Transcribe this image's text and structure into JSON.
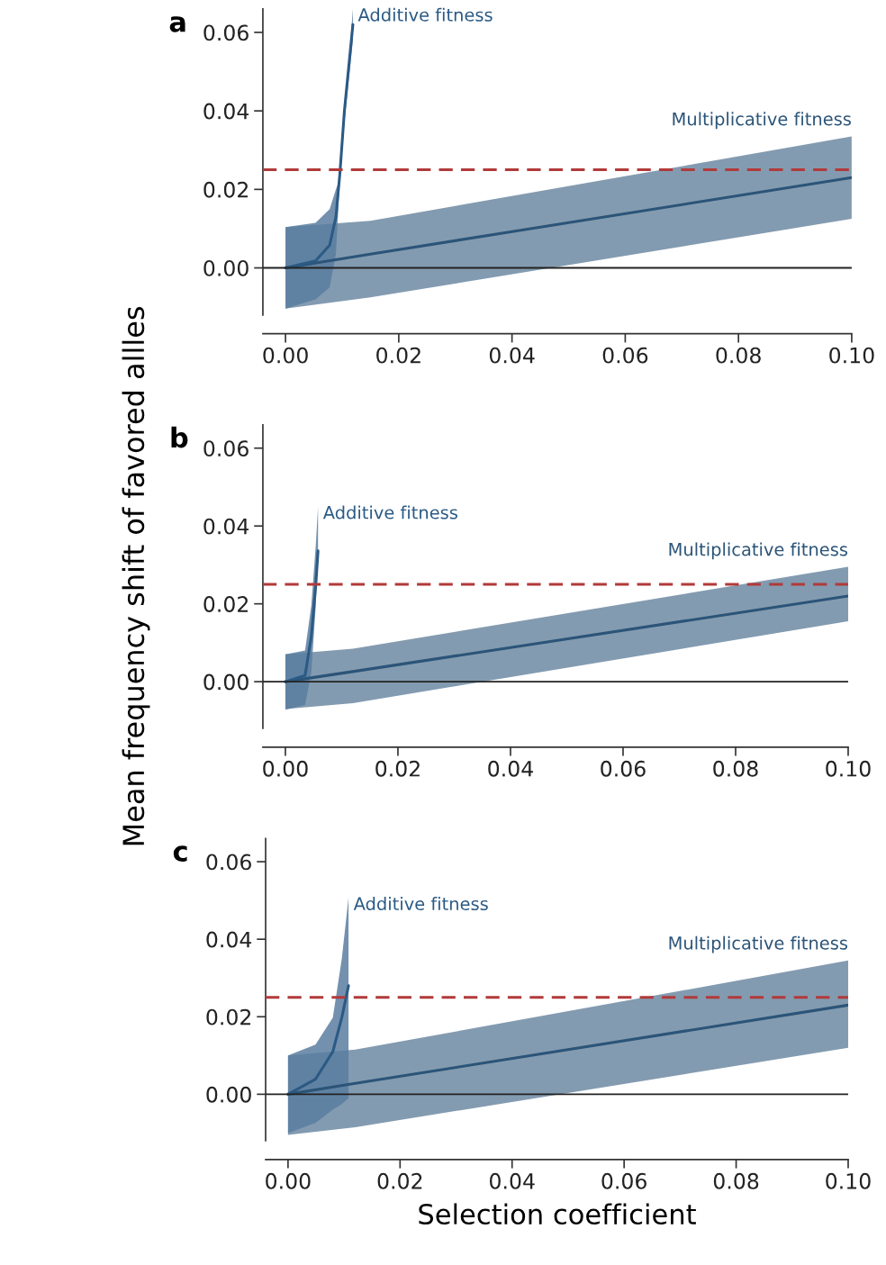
{
  "chart_data": [
    {
      "type": "line",
      "title": "a",
      "xlim": [
        -0.004,
        0.1
      ],
      "ylim": [
        -0.012,
        0.066
      ],
      "xticks": [
        {
          "value": 0,
          "label": "0.00"
        },
        {
          "value": 0.02,
          "label": "0.02"
        },
        {
          "value": 0.04,
          "label": "0.04"
        },
        {
          "value": 0.06,
          "label": "0.06"
        },
        {
          "value": 0.08,
          "label": "0.08"
        },
        {
          "value": 0.1,
          "label": "0.10"
        }
      ],
      "yticks": [
        {
          "value": 0,
          "label": "0.00"
        },
        {
          "value": 0.02,
          "label": "0.02"
        },
        {
          "value": 0.04,
          "label": "0.04"
        },
        {
          "value": 0.06,
          "label": "0.06"
        }
      ],
      "grid": false,
      "legend": false,
      "ref_lines": [
        {
          "axis": "y",
          "value": 0,
          "color": "#222222",
          "line_style": "solid"
        },
        {
          "axis": "y",
          "value": 0.025,
          "color": "#b23a3a",
          "line_style": "dashed"
        }
      ],
      "series": [
        {
          "name": "Multiplicative fitness",
          "color": "#2b5478",
          "x": [
            0,
            0.015,
            0.1
          ],
          "values": [
            0,
            0.0035,
            0.023
          ],
          "lower": [
            -0.0104,
            -0.0075,
            0.0125
          ],
          "upper": [
            0.0104,
            0.012,
            0.0335
          ]
        },
        {
          "name": "Additive fitness",
          "color": "#2b5a85",
          "x": [
            0,
            0.0053,
            0.0078,
            0.0089,
            0.0096,
            0.0104,
            0.0119
          ],
          "values": [
            0,
            0.0018,
            0.0058,
            0.013,
            0.024,
            0.04,
            0.062
          ],
          "lower": [
            -0.0104,
            -0.008,
            -0.005,
            0.0035,
            0.0226,
            0.037,
            0.058
          ],
          "upper": [
            0.0104,
            0.0115,
            0.015,
            0.02,
            0.0226,
            0.038,
            0.066
          ]
        }
      ]
    },
    {
      "type": "line",
      "title": "b",
      "ylabel": "Mean frequency shift of favored allles",
      "xlim": [
        -0.004,
        0.1
      ],
      "ylim": [
        -0.012,
        0.066
      ],
      "xticks": [
        {
          "value": 0,
          "label": "0.00"
        },
        {
          "value": 0.02,
          "label": "0.02"
        },
        {
          "value": 0.04,
          "label": "0.04"
        },
        {
          "value": 0.06,
          "label": "0.06"
        },
        {
          "value": 0.08,
          "label": "0.08"
        },
        {
          "value": 0.1,
          "label": "0.10"
        }
      ],
      "yticks": [
        {
          "value": 0,
          "label": "0.00"
        },
        {
          "value": 0.02,
          "label": "0.02"
        },
        {
          "value": 0.04,
          "label": "0.04"
        },
        {
          "value": 0.06,
          "label": "0.06"
        }
      ],
      "grid": false,
      "legend": false,
      "ref_lines": [
        {
          "axis": "y",
          "value": 0,
          "color": "#222222",
          "line_style": "solid"
        },
        {
          "axis": "y",
          "value": 0.025,
          "color": "#b23a3a",
          "line_style": "dashed"
        }
      ],
      "series": [
        {
          "name": "Multiplicative fitness",
          "color": "#2b5478",
          "x": [
            0,
            0.012,
            0.1
          ],
          "values": [
            0,
            0.0026,
            0.022
          ],
          "lower": [
            -0.007,
            -0.0055,
            0.0155
          ],
          "upper": [
            0.007,
            0.0085,
            0.0295
          ]
        },
        {
          "name": "Additive fitness",
          "color": "#2b5a85",
          "x": [
            0,
            0.0035,
            0.0046,
            0.0054,
            0.0058
          ],
          "values": [
            0,
            0.0016,
            0.0116,
            0.0248,
            0.0336
          ],
          "lower": [
            -0.0072,
            -0.006,
            0.0023,
            0.0195,
            0.034
          ],
          "upper": [
            0.007,
            0.008,
            0.0195,
            0.035,
            0.045
          ]
        }
      ]
    },
    {
      "type": "line",
      "title": "c",
      "xlabel": "Selection coefficient",
      "xlim": [
        -0.004,
        0.1
      ],
      "ylim": [
        -0.012,
        0.066
      ],
      "xticks": [
        {
          "value": 0,
          "label": "0.00"
        },
        {
          "value": 0.02,
          "label": "0.02"
        },
        {
          "value": 0.04,
          "label": "0.04"
        },
        {
          "value": 0.06,
          "label": "0.06"
        },
        {
          "value": 0.08,
          "label": "0.08"
        },
        {
          "value": 0.1,
          "label": "0.10"
        }
      ],
      "yticks": [
        {
          "value": 0,
          "label": "0.00"
        },
        {
          "value": 0.02,
          "label": "0.02"
        },
        {
          "value": 0.04,
          "label": "0.04"
        },
        {
          "value": 0.06,
          "label": "0.06"
        }
      ],
      "grid": false,
      "legend": false,
      "ref_lines": [
        {
          "axis": "y",
          "value": 0,
          "color": "#222222",
          "line_style": "solid"
        },
        {
          "axis": "y",
          "value": 0.025,
          "color": "#b23a3a",
          "line_style": "dashed"
        }
      ],
      "series": [
        {
          "name": "Multiplicative fitness",
          "color": "#2b5478",
          "x": [
            0,
            0.012,
            0.1
          ],
          "values": [
            0,
            0.0028,
            0.023
          ],
          "lower": [
            -0.0105,
            -0.0085,
            0.012
          ],
          "upper": [
            0.01,
            0.0115,
            0.0345
          ]
        },
        {
          "name": "Additive fitness",
          "color": "#2b5a85",
          "x": [
            0,
            0.0049,
            0.008,
            0.0096,
            0.0108
          ],
          "values": [
            0,
            0.0039,
            0.011,
            0.0198,
            0.028
          ],
          "lower": [
            -0.01,
            -0.0074,
            -0.004,
            -0.0025,
            -0.001
          ],
          "upper": [
            0.01,
            0.0128,
            0.0198,
            0.035,
            0.0507
          ]
        }
      ]
    }
  ]
}
